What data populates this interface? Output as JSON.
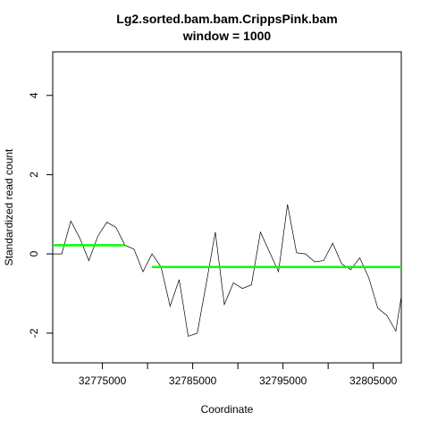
{
  "chart_data": {
    "type": "line",
    "title": "Lg2.sorted.bam.bam.CrippsPink.bam",
    "subtitle": "window = 1000",
    "xlabel": "Coordinate",
    "ylabel": "Standardized read count",
    "xlim": [
      32769500,
      32808100
    ],
    "ylim": [
      -2.75,
      5.1
    ],
    "x_ticks": [
      {
        "value": 32775000,
        "label": "32775000"
      },
      {
        "value": 32780000,
        "label": ""
      },
      {
        "value": 32785000,
        "label": "32785000"
      },
      {
        "value": 32790000,
        "label": ""
      },
      {
        "value": 32795000,
        "label": "32795000"
      },
      {
        "value": 32800000,
        "label": ""
      },
      {
        "value": 32805000,
        "label": "32805000"
      }
    ],
    "y_ticks": [
      {
        "value": -2,
        "label": "-2"
      },
      {
        "value": 0,
        "label": "0"
      },
      {
        "value": 2,
        "label": "2"
      },
      {
        "value": 4,
        "label": "4"
      }
    ],
    "series": [
      {
        "color": "#000000",
        "x": [
          32769500,
          32770500,
          32771500,
          32772500,
          32773500,
          32774500,
          32775500,
          32776500,
          32777500,
          32778500,
          32779500,
          32780500,
          32781500,
          32782500,
          32783500,
          32784500,
          32785500,
          32786500,
          32787500,
          32788500,
          32789500,
          32790500,
          32791500,
          32792500,
          32793500,
          32794500,
          32795500,
          32796500,
          32797500,
          32798500,
          32799500,
          32800500,
          32801500,
          32802500,
          32803500,
          32804500,
          32805500,
          32806500,
          32807500,
          32808500
        ],
        "values": [
          0.0,
          0.0,
          0.83,
          0.4,
          -0.17,
          0.45,
          0.8,
          0.67,
          0.22,
          0.12,
          -0.45,
          0.0,
          -0.33,
          -1.32,
          -0.65,
          -2.08,
          -2.0,
          -0.75,
          0.55,
          -1.28,
          -0.73,
          -0.87,
          -0.78,
          0.55,
          0.05,
          -0.45,
          1.25,
          0.03,
          0.0,
          -0.2,
          -0.17,
          0.27,
          -0.25,
          -0.4,
          -0.1,
          -0.6,
          -1.37,
          -1.55,
          -1.95,
          -0.5
        ]
      }
    ],
    "segments": [
      {
        "color": "#00ff00",
        "x0": 32769500,
        "x1": 32777500,
        "y": 0.22
      },
      {
        "color": "#00ff00",
        "x0": 32780500,
        "x1": 32808100,
        "y": -0.33
      }
    ],
    "grid": false,
    "legend": "none"
  }
}
